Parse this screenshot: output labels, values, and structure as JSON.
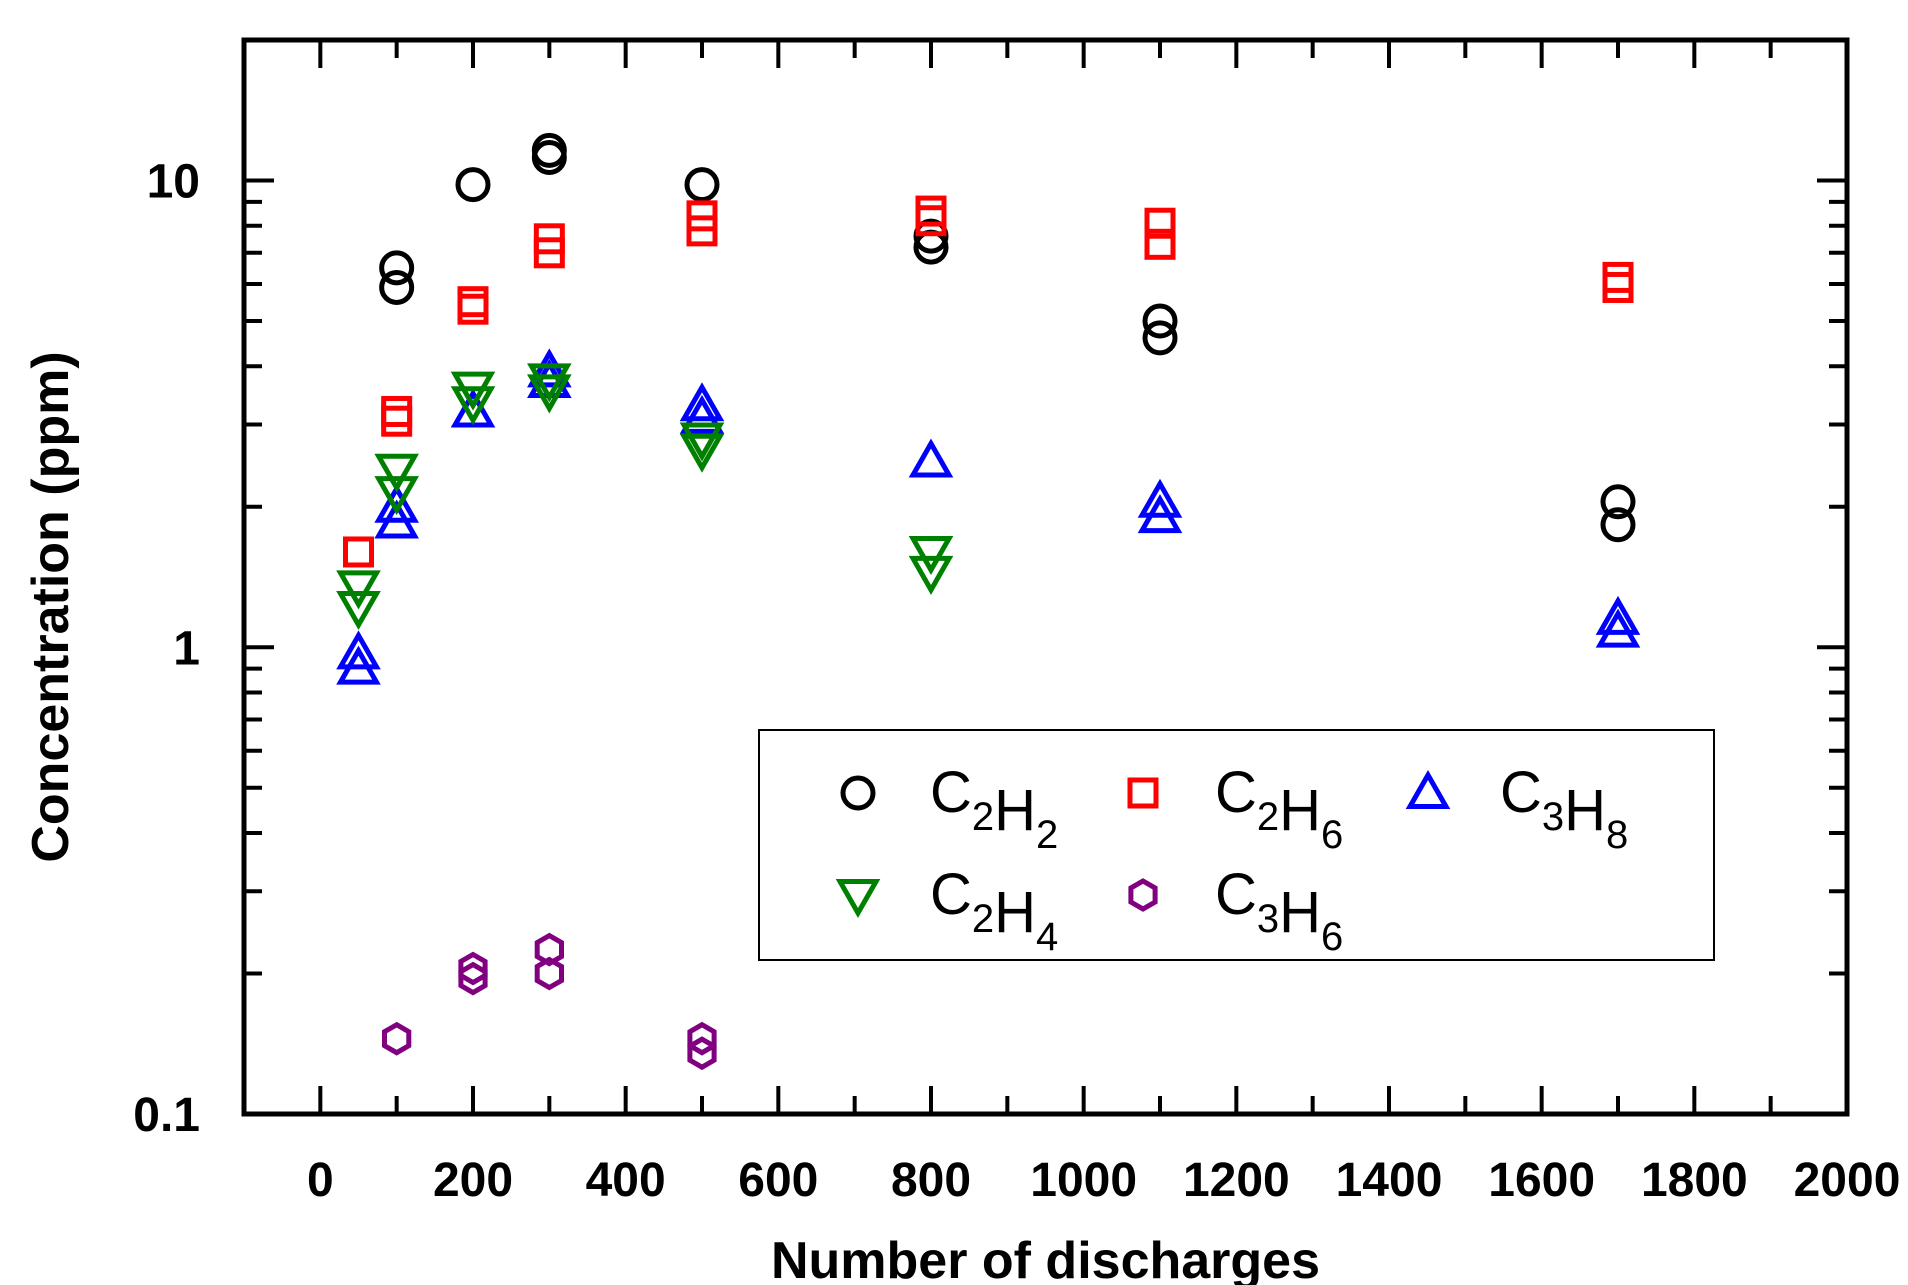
{
  "chart_data": {
    "type": "scatter",
    "xlabel": "Number of discharges",
    "ylabel": "Concentration (ppm)",
    "xlim": [
      -100,
      2000
    ],
    "ylim": [
      0.1,
      20
    ],
    "yscale": "log",
    "x_ticks": [
      0,
      200,
      400,
      600,
      800,
      1000,
      1200,
      1400,
      1600,
      1800,
      2000
    ],
    "x_tick_labels": [
      "0",
      "200",
      "400",
      "600",
      "800",
      "1000",
      "1200",
      "1400",
      "1600",
      "1800",
      "2000"
    ],
    "y_ticks": [
      0.1,
      1,
      10
    ],
    "y_tick_labels": [
      "0.1",
      "1",
      "10"
    ],
    "grid": false,
    "legend_position": "lower-right",
    "series": [
      {
        "name_main": [
          "C",
          "H"
        ],
        "name_subs": [
          "2",
          "2"
        ],
        "marker": "circle",
        "color": "#000000",
        "points": [
          [
            100,
            6.5
          ],
          [
            100,
            5.9
          ],
          [
            200,
            9.8
          ],
          [
            300,
            11.6
          ],
          [
            300,
            11.2
          ],
          [
            500,
            9.8
          ],
          [
            800,
            7.6
          ],
          [
            800,
            7.2
          ],
          [
            1100,
            5.0
          ],
          [
            1100,
            4.6
          ],
          [
            1700,
            2.05
          ],
          [
            1700,
            1.83
          ]
        ]
      },
      {
        "name_main": [
          "C",
          "H"
        ],
        "name_subs": [
          "2",
          "6"
        ],
        "marker": "square",
        "color": "#ff0000",
        "points": [
          [
            50,
            1.6
          ],
          [
            100,
            3.2
          ],
          [
            100,
            3.05
          ],
          [
            200,
            5.5
          ],
          [
            200,
            5.3
          ],
          [
            300,
            7.5
          ],
          [
            300,
            7.0
          ],
          [
            500,
            8.4
          ],
          [
            500,
            7.8
          ],
          [
            800,
            8.6
          ],
          [
            800,
            8.2
          ],
          [
            1100,
            8.1
          ],
          [
            1100,
            7.3
          ],
          [
            1700,
            6.2
          ],
          [
            1700,
            5.9
          ]
        ]
      },
      {
        "name_main": [
          "C",
          "H"
        ],
        "name_subs": [
          "3",
          "8"
        ],
        "marker": "triangle-up",
        "color": "#0000ff",
        "points": [
          [
            50,
            0.97
          ],
          [
            50,
            0.9
          ],
          [
            100,
            2.0
          ],
          [
            100,
            1.85
          ],
          [
            200,
            3.2
          ],
          [
            300,
            3.9
          ],
          [
            300,
            3.7
          ],
          [
            500,
            3.3
          ],
          [
            500,
            3.1
          ],
          [
            800,
            2.5
          ],
          [
            1100,
            2.05
          ],
          [
            1100,
            1.9
          ],
          [
            1700,
            1.15
          ],
          [
            1700,
            1.08
          ]
        ]
      },
      {
        "name_main": [
          "C",
          "H"
        ],
        "name_subs": [
          "2",
          "4"
        ],
        "marker": "triangle-down",
        "color": "#008000",
        "points": [
          [
            50,
            1.35
          ],
          [
            50,
            1.22
          ],
          [
            100,
            2.4
          ],
          [
            100,
            2.15
          ],
          [
            200,
            3.6
          ],
          [
            200,
            3.35
          ],
          [
            300,
            3.75
          ],
          [
            300,
            3.55
          ],
          [
            500,
            2.8
          ],
          [
            500,
            2.65
          ],
          [
            800,
            1.6
          ],
          [
            800,
            1.45
          ]
        ]
      },
      {
        "name_main": [
          "C",
          "H"
        ],
        "name_subs": [
          "3",
          "6"
        ],
        "marker": "hexagon",
        "color": "#800080",
        "points": [
          [
            100,
            0.145
          ],
          [
            200,
            0.205
          ],
          [
            200,
            0.195
          ],
          [
            300,
            0.225
          ],
          [
            300,
            0.2
          ],
          [
            500,
            0.145
          ],
          [
            500,
            0.135
          ]
        ]
      }
    ]
  }
}
